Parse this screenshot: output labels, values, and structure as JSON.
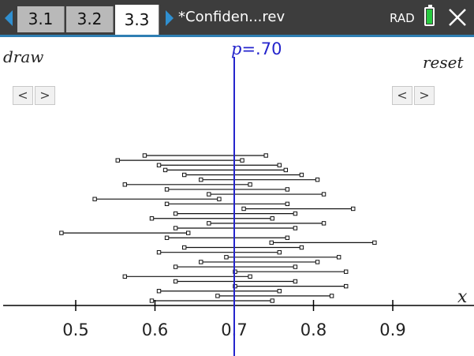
{
  "tabs": [
    {
      "label": "3.1",
      "active": false
    },
    {
      "label": "3.2",
      "active": false
    },
    {
      "label": "3.3",
      "active": true
    }
  ],
  "document": {
    "title": "*Confiden...rev"
  },
  "status": {
    "angle_mode": "RAD",
    "battery_level": 0.9
  },
  "colors": {
    "title_bar": "#3d3d3d",
    "accent": "#2f7fb3",
    "p_line": "#2424cc",
    "battery": "#28c940"
  },
  "icons": {
    "prev": "chevron-left-icon",
    "next": "chevron-right-icon",
    "close": "close-icon"
  },
  "controls": {
    "draw_label": "draw",
    "reset_label": "reset",
    "prev_glyph": "<",
    "next_glyph": ">"
  },
  "chart_data": {
    "type": "interval-plot",
    "xlabel": "x",
    "xlim": [
      0.42,
      1.02
    ],
    "ticks": [
      0.5,
      0.6,
      0.7,
      0.8,
      0.9
    ],
    "tick_labels": [
      "0.5",
      "0.6",
      "0.7",
      "0.8",
      "0.9"
    ],
    "reference_line": {
      "name": "p",
      "value": 0.7,
      "label_var": "p",
      "label_rest": "=.70"
    },
    "intervals": [
      [
        0.587,
        0.74
      ],
      [
        0.553,
        0.71
      ],
      [
        0.605,
        0.757
      ],
      [
        0.613,
        0.765
      ],
      [
        0.637,
        0.785
      ],
      [
        0.658,
        0.805
      ],
      [
        0.562,
        0.72
      ],
      [
        0.615,
        0.767
      ],
      [
        0.668,
        0.813
      ],
      [
        0.524,
        0.681
      ],
      [
        0.615,
        0.767
      ],
      [
        0.712,
        0.85
      ],
      [
        0.626,
        0.777
      ],
      [
        0.596,
        0.748
      ],
      [
        0.668,
        0.813
      ],
      [
        0.626,
        0.777
      ],
      [
        0.482,
        0.642
      ],
      [
        0.615,
        0.767
      ],
      [
        0.747,
        0.877
      ],
      [
        0.637,
        0.785
      ],
      [
        0.605,
        0.757
      ],
      [
        0.69,
        0.832
      ],
      [
        0.658,
        0.805
      ],
      [
        0.626,
        0.777
      ],
      [
        0.701,
        0.841
      ],
      [
        0.562,
        0.72
      ],
      [
        0.626,
        0.777
      ],
      [
        0.701,
        0.841
      ],
      [
        0.605,
        0.757
      ],
      [
        0.679,
        0.823
      ],
      [
        0.596,
        0.748
      ]
    ]
  }
}
